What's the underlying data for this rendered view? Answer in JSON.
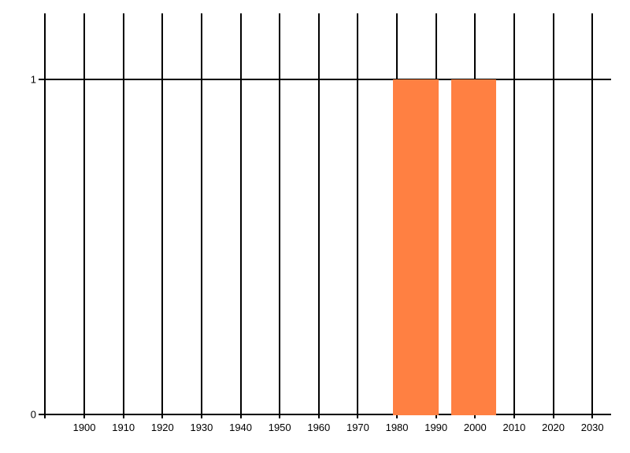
{
  "chart_data": {
    "type": "bar",
    "title": "",
    "xlabel": "",
    "ylabel": "",
    "grid": true,
    "legend": null,
    "x_axis": {
      "min": 1888.3,
      "max": 2034.8,
      "gridline_years": [
        1890,
        1900,
        1910,
        1920,
        1930,
        1940,
        1950,
        1960,
        1970,
        1980,
        1990,
        2000,
        2010,
        2020,
        2030
      ],
      "tick_label_years": [
        1900,
        1910,
        1920,
        1930,
        1940,
        1950,
        1960,
        1970,
        1980,
        1990,
        2000,
        2010,
        2020,
        2030
      ]
    },
    "y_axis": {
      "min": 0,
      "max": 1.2,
      "tick_values": [
        0,
        1
      ],
      "tick_labels": [
        "0",
        "1"
      ]
    },
    "bars": [
      {
        "x_start": 1979.0,
        "x_end": 1990.7,
        "value": 1
      },
      {
        "x_start": 1993.9,
        "x_end": 2005.4,
        "value": 1
      }
    ],
    "values": [
      1,
      1
    ],
    "colors": {
      "bar": "#FF8042",
      "grid": "#000000",
      "text": "#000000",
      "background": "#FFFFFF"
    }
  }
}
